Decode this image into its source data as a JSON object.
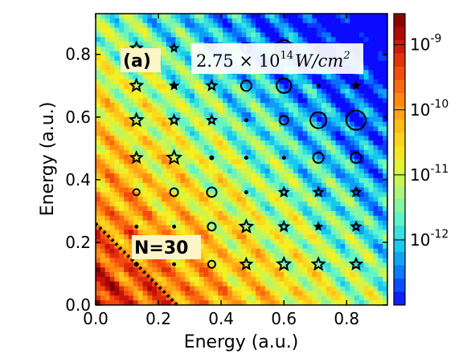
{
  "chart_data": {
    "type": "heatmap",
    "panel_label": "(a)",
    "intensity_label": "2.75 × 10^14 W/cm^2",
    "intensity_parts": {
      "base": "2.75 × 10",
      "exp14": "14",
      "unit": "W/cm",
      "exp2": "2"
    },
    "xlabel": "Energy (a.u.)",
    "ylabel": "Energy (a.u.)",
    "xlim": [
      0,
      0.93
    ],
    "ylim": [
      0,
      0.93
    ],
    "x_ticks": [
      "0.0",
      "0.2",
      "0.4",
      "0.6",
      "0.8"
    ],
    "x_tick_values": [
      0.0,
      0.2,
      0.4,
      0.6,
      0.8
    ],
    "y_ticks": [
      "0.0",
      "0.2",
      "0.4",
      "0.6",
      "0.8"
    ],
    "y_tick_values": [
      0.0,
      0.2,
      0.4,
      0.6,
      0.8
    ],
    "colorbar": {
      "scale": "log",
      "range": [
        1e-13,
        3e-09
      ],
      "ticks": [
        {
          "value": 1e-09,
          "base": "10",
          "exp": "-9"
        },
        {
          "value": 1e-10,
          "base": "10",
          "exp": "-10"
        },
        {
          "value": 1e-11,
          "base": "10",
          "exp": "-11"
        },
        {
          "value": 1e-12,
          "base": "10",
          "exp": "-12"
        }
      ],
      "colormap": [
        "#0b0bff",
        "#0a6fff",
        "#16c8f0",
        "#62f5c6",
        "#b7f56a",
        "#f3f023",
        "#ffc419",
        "#ff8a12",
        "#f24a0d",
        "#c8120a",
        "#7a0000"
      ]
    },
    "annotation": {
      "text": "N=30",
      "line_start": [
        0.0,
        0.26
      ],
      "line_end": [
        0.26,
        0.0
      ]
    },
    "grid_x": [
      0.13,
      0.25,
      0.37,
      0.48,
      0.6,
      0.71,
      0.83
    ],
    "grid_y": [
      0.82,
      0.7,
      0.59,
      0.47,
      0.36,
      0.25,
      0.13
    ],
    "markers": [
      {
        "x": 0.13,
        "y": 0.82,
        "type": "star",
        "size": 12
      },
      {
        "x": 0.25,
        "y": 0.82,
        "type": "star",
        "size": 7
      },
      {
        "x": 0.37,
        "y": 0.82,
        "type": "star",
        "size": 7
      },
      {
        "x": 0.48,
        "y": 0.82,
        "type": "circle",
        "size": 10
      },
      {
        "x": 0.6,
        "y": 0.82,
        "type": "circle",
        "size": 18
      },
      {
        "x": 0.71,
        "y": 0.82,
        "type": "star",
        "size": 6
      },
      {
        "x": 0.83,
        "y": 0.82,
        "type": "star",
        "size": 6
      },
      {
        "x": 0.13,
        "y": 0.7,
        "type": "star",
        "size": 13
      },
      {
        "x": 0.25,
        "y": 0.7,
        "type": "star-filled",
        "size": 7
      },
      {
        "x": 0.37,
        "y": 0.7,
        "type": "star",
        "size": 10
      },
      {
        "x": 0.48,
        "y": 0.7,
        "type": "circle",
        "size": 11
      },
      {
        "x": 0.6,
        "y": 0.7,
        "type": "circle",
        "size": 16
      },
      {
        "x": 0.71,
        "y": 0.7,
        "type": "dot",
        "size": 3
      },
      {
        "x": 0.83,
        "y": 0.7,
        "type": "star-filled",
        "size": 6
      },
      {
        "x": 0.13,
        "y": 0.59,
        "type": "star",
        "size": 14
      },
      {
        "x": 0.25,
        "y": 0.59,
        "type": "star",
        "size": 10
      },
      {
        "x": 0.37,
        "y": 0.59,
        "type": "star",
        "size": 9
      },
      {
        "x": 0.48,
        "y": 0.59,
        "type": "dot",
        "size": 3
      },
      {
        "x": 0.6,
        "y": 0.59,
        "type": "circle",
        "size": 9
      },
      {
        "x": 0.71,
        "y": 0.59,
        "type": "circle",
        "size": 18
      },
      {
        "x": 0.83,
        "y": 0.59,
        "type": "circle",
        "size": 22
      },
      {
        "x": 0.13,
        "y": 0.47,
        "type": "star",
        "size": 12
      },
      {
        "x": 0.25,
        "y": 0.47,
        "type": "star",
        "size": 15
      },
      {
        "x": 0.37,
        "y": 0.47,
        "type": "dot",
        "size": 4
      },
      {
        "x": 0.48,
        "y": 0.47,
        "type": "dot",
        "size": 3
      },
      {
        "x": 0.6,
        "y": 0.47,
        "type": "dot",
        "size": 3
      },
      {
        "x": 0.71,
        "y": 0.47,
        "type": "circle",
        "size": 11
      },
      {
        "x": 0.83,
        "y": 0.47,
        "type": "circle",
        "size": 11
      },
      {
        "x": 0.13,
        "y": 0.36,
        "type": "circle",
        "size": 6
      },
      {
        "x": 0.25,
        "y": 0.36,
        "type": "circle",
        "size": 8
      },
      {
        "x": 0.37,
        "y": 0.36,
        "type": "circle",
        "size": 10
      },
      {
        "x": 0.48,
        "y": 0.36,
        "type": "dot",
        "size": 3
      },
      {
        "x": 0.6,
        "y": 0.36,
        "type": "star",
        "size": 9
      },
      {
        "x": 0.71,
        "y": 0.36,
        "type": "star",
        "size": 9
      },
      {
        "x": 0.83,
        "y": 0.36,
        "type": "star",
        "size": 9
      },
      {
        "x": 0.13,
        "y": 0.25,
        "type": "dot",
        "size": 3
      },
      {
        "x": 0.25,
        "y": 0.25,
        "type": "dot",
        "size": 3
      },
      {
        "x": 0.37,
        "y": 0.25,
        "type": "circle",
        "size": 8
      },
      {
        "x": 0.48,
        "y": 0.25,
        "type": "star",
        "size": 14
      },
      {
        "x": 0.6,
        "y": 0.25,
        "type": "star",
        "size": 10
      },
      {
        "x": 0.71,
        "y": 0.25,
        "type": "star-filled",
        "size": 6
      },
      {
        "x": 0.83,
        "y": 0.25,
        "type": "star",
        "size": 9
      },
      {
        "x": 0.13,
        "y": 0.13,
        "type": "dot",
        "size": 4
      },
      {
        "x": 0.25,
        "y": 0.13,
        "type": "dot",
        "size": 3
      },
      {
        "x": 0.37,
        "y": 0.13,
        "type": "circle",
        "size": 7
      },
      {
        "x": 0.48,
        "y": 0.13,
        "type": "star",
        "size": 12
      },
      {
        "x": 0.6,
        "y": 0.13,
        "type": "star",
        "size": 14
      },
      {
        "x": 0.71,
        "y": 0.13,
        "type": "star",
        "size": 13
      },
      {
        "x": 0.83,
        "y": 0.13,
        "type": "star",
        "size": 12
      }
    ]
  }
}
